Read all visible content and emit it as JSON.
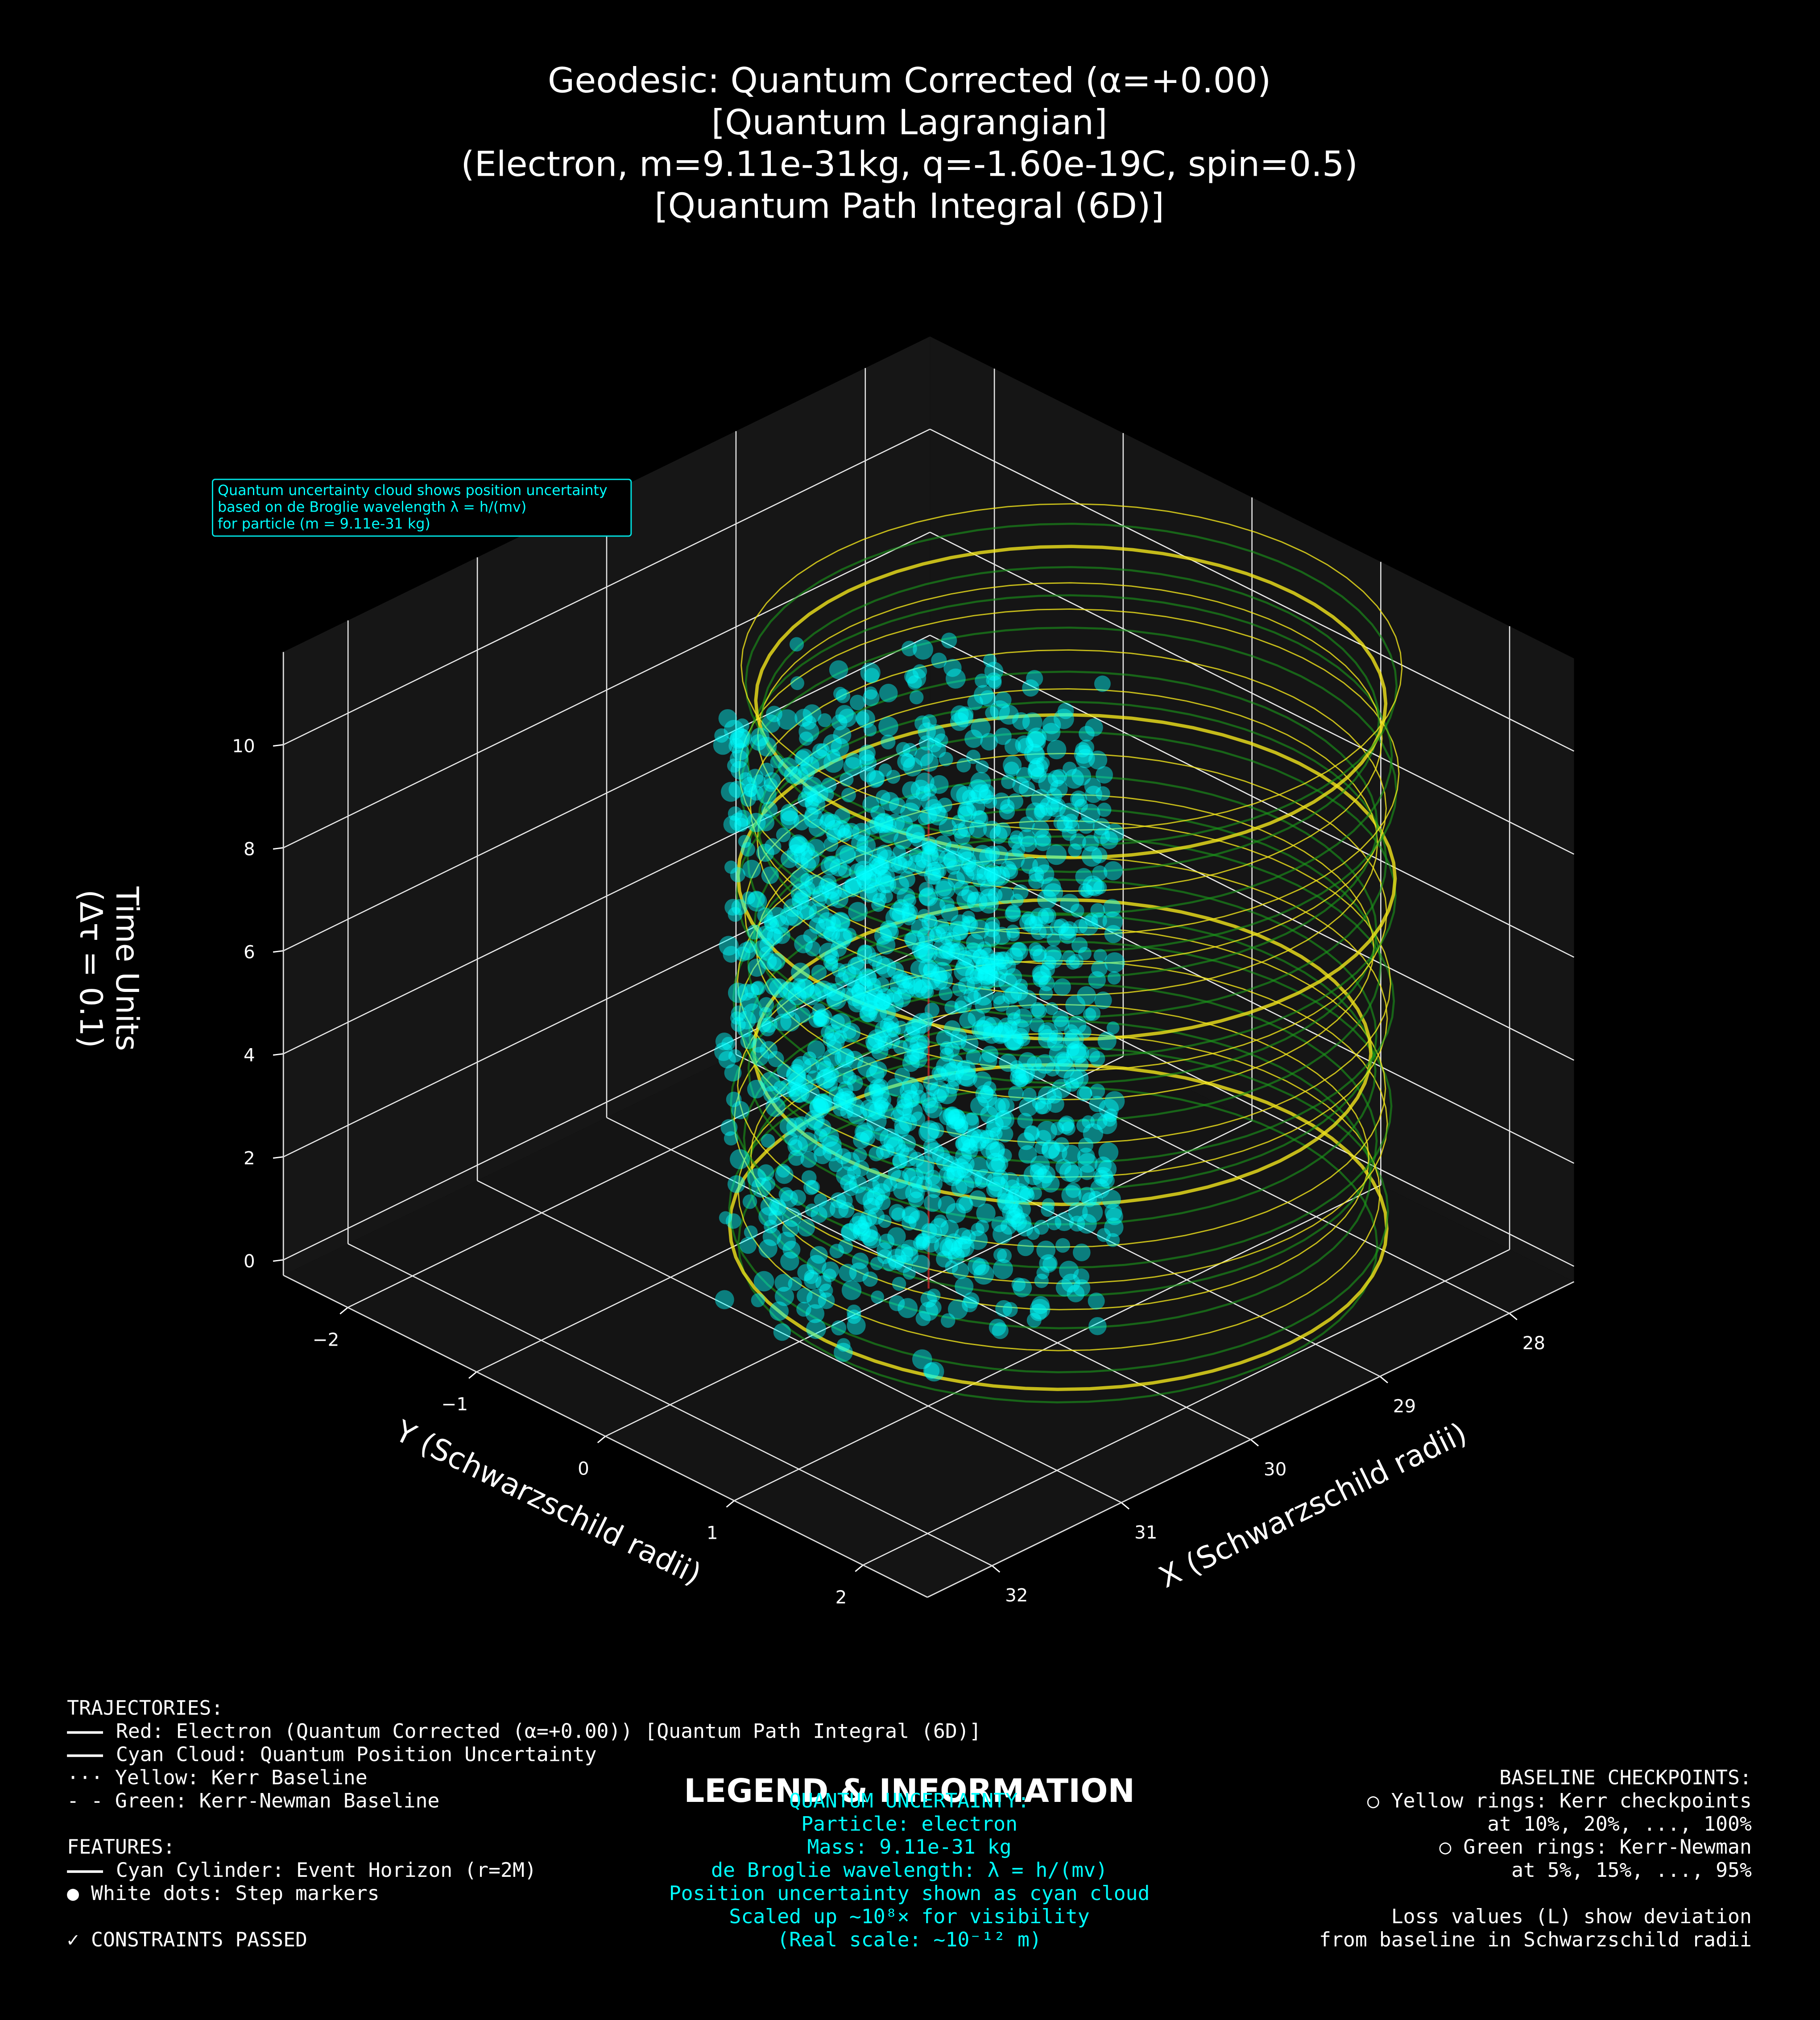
{
  "chart_data": {
    "type": "scatter3d",
    "title": [
      "Geodesic: Quantum Corrected (α=+0.00)",
      "[Quantum Lagrangian]",
      "(Electron, m=9.11e-31kg, q=-1.60e-19C, spin=0.5)",
      "[Quantum Path Integral (6D)]"
    ],
    "annotation": [
      "Quantum uncertainty cloud shows position uncertainty",
      "based on de Broglie wavelength λ = h/(mv)",
      "for particle (m = 9.11e-31 kg)"
    ],
    "xlabel": "X (Schwarzschild radii)",
    "ylabel": "Y (Schwarzschild radii)",
    "zlabel": [
      "Time Units",
      "(Δτ = 0.1)"
    ],
    "xlim": [
      27.5,
      32.5
    ],
    "ylim": [
      -2.5,
      2.5
    ],
    "zlim": [
      -0.3,
      11.8
    ],
    "xticks": [
      28,
      29,
      30,
      31,
      32
    ],
    "yticks": [
      {
        "value": -2,
        "label": "−2"
      },
      {
        "value": -1,
        "label": "−1"
      },
      0,
      1,
      2
    ],
    "zticks": [
      0,
      2,
      4,
      6,
      8,
      10
    ],
    "grid": true
  },
  "info": {
    "heading": "LEGEND & INFORMATION",
    "trajectories": [
      "TRAJECTORIES:",
      "Red: Electron (Quantum Corrected (α=+0.00)) [Quantum Path Integral (6D)]",
      "Cyan Cloud: Quantum Position Uncertainty",
      "··· Yellow: Kerr Baseline",
      "- - Green: Kerr-Newman Baseline"
    ],
    "features": [
      "FEATURES:",
      "Cyan Cylinder: Event Horizon (r=2M)",
      "● White dots: Step markers"
    ],
    "status": "✓ CONSTRAINTS PASSED",
    "quantum": [
      "QUANTUM UNCERTAINTY:",
      "Particle: electron",
      "Mass: 9.11e-31 kg",
      "de Broglie wavelength: λ = h/(mv)",
      "Position uncertainty shown as cyan cloud",
      "Scaled up ~10⁸× for visibility",
      "(Real scale: ~10⁻¹² m)"
    ],
    "checkpoints": [
      "BASELINE CHECKPOINTS:",
      "○ Yellow rings: Kerr checkpoints",
      "at 10%, 20%, ..., 100%",
      "○ Green rings: Kerr-Newman",
      "at 5%, 15%, ..., 95%"
    ],
    "loss": [
      "Loss values (L) show deviation",
      "from baseline in Schwarzschild radii"
    ]
  }
}
